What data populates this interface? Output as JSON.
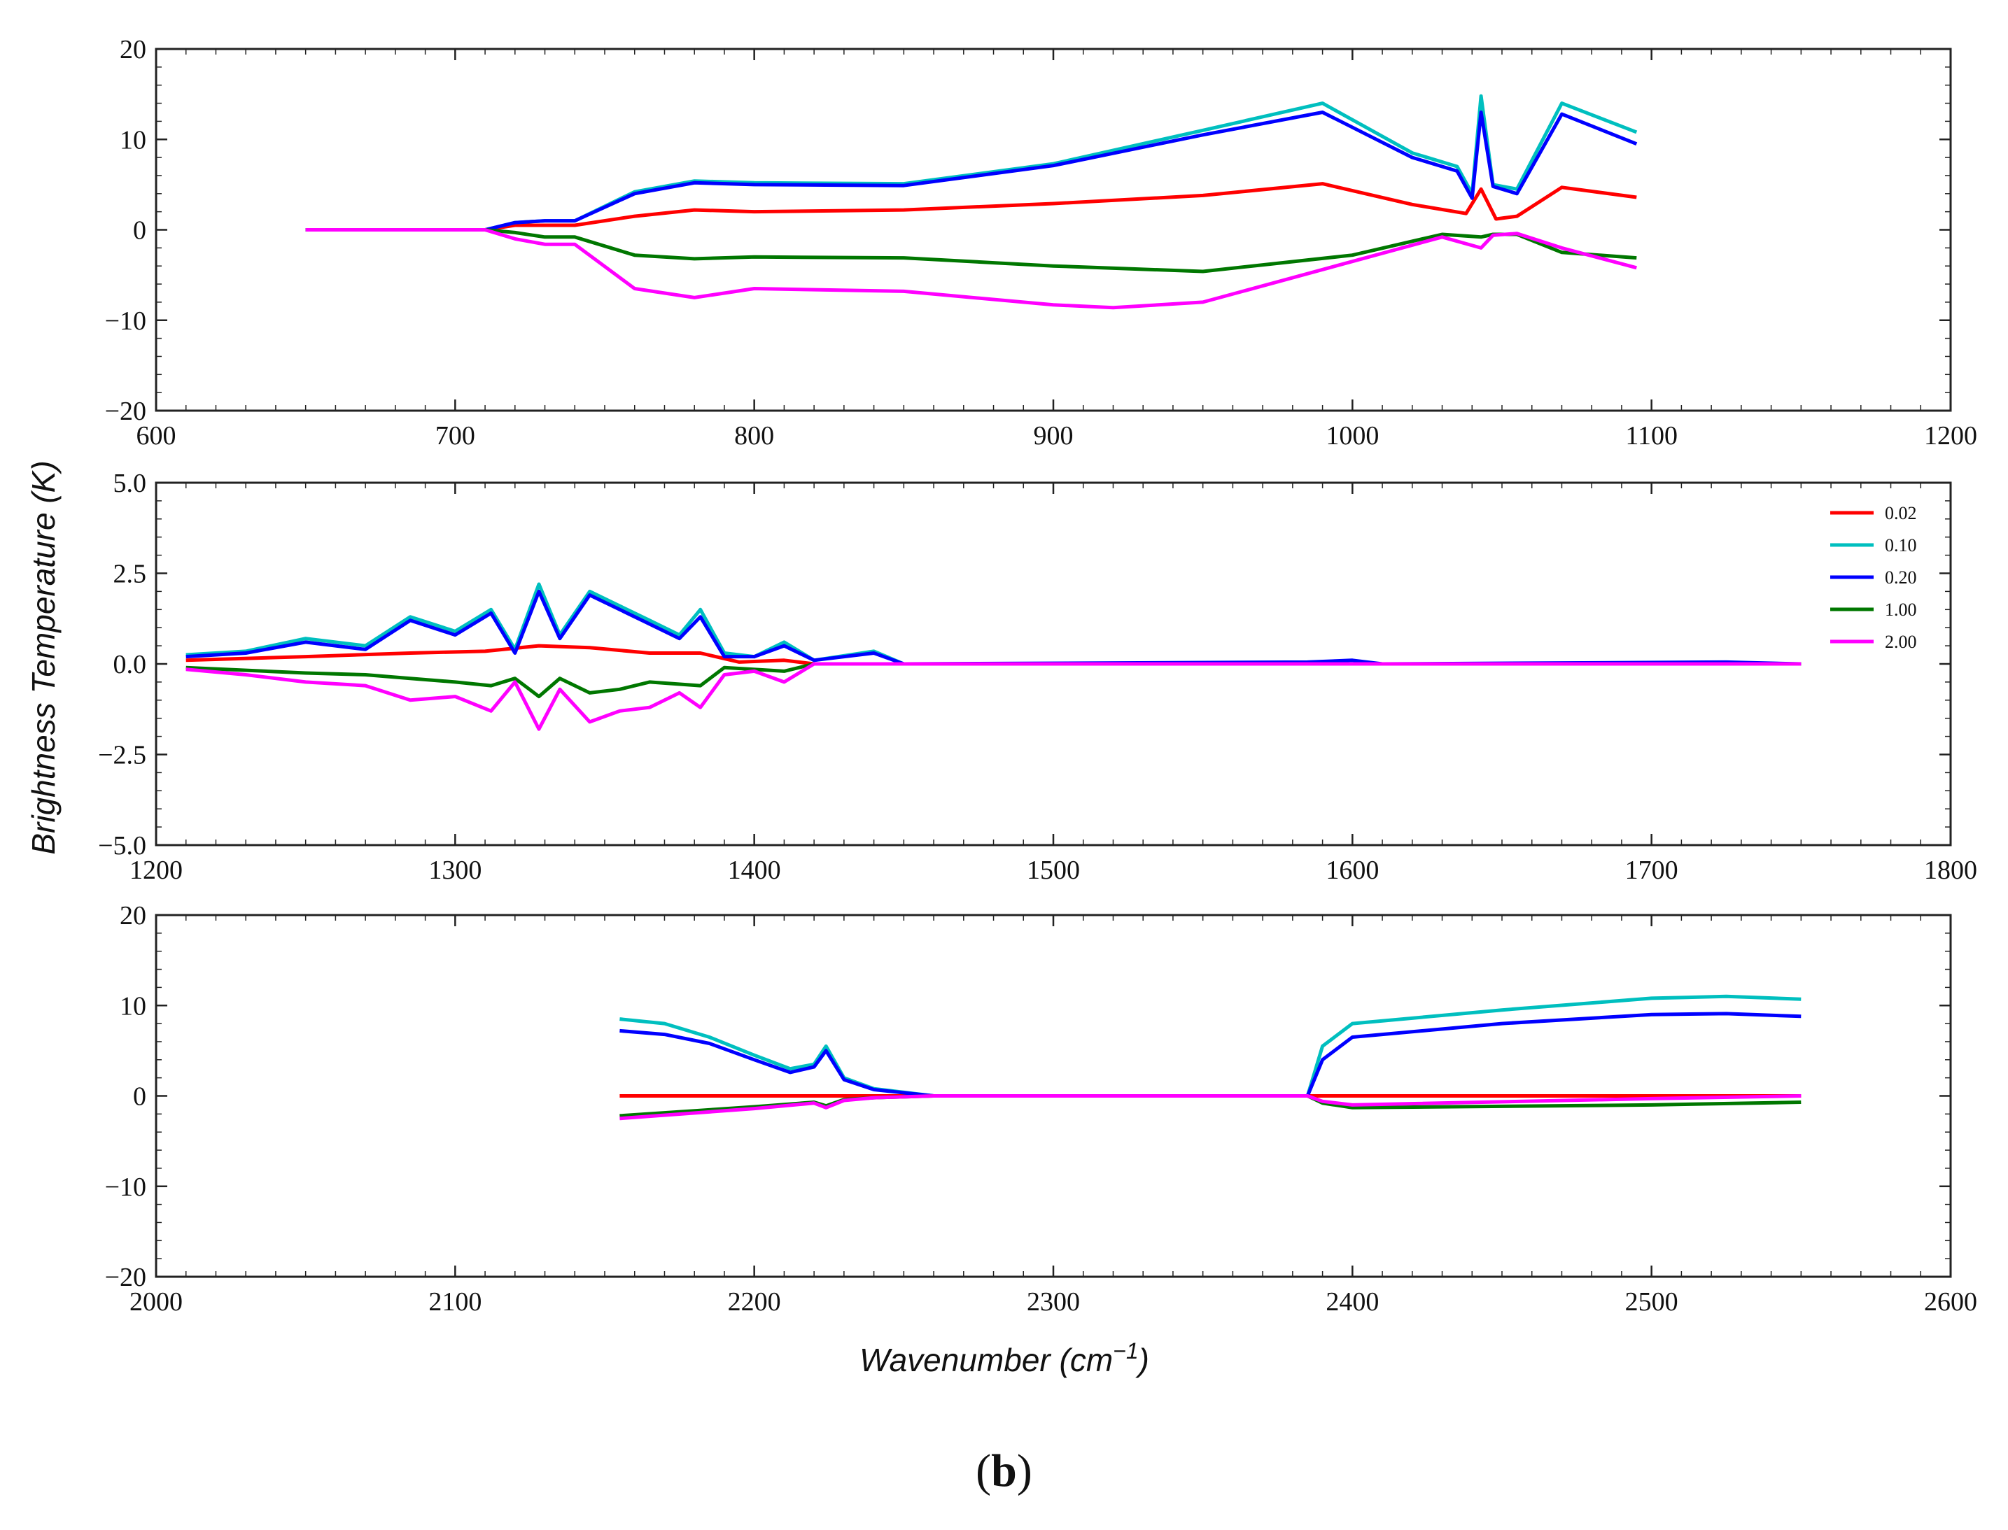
{
  "figure": {
    "ylabel": "Brightness Temperature (K)",
    "xlabel_text": "Wavenumber",
    "xlabel_unit_base": "cm",
    "xlabel_unit_exp": "−1",
    "caption_open": "(",
    "caption_letter": "b",
    "caption_close": ")"
  },
  "chart_data": [
    {
      "type": "line",
      "panel": "top",
      "xlim": [
        600,
        1200
      ],
      "ylim": [
        -20,
        20
      ],
      "xticks": [
        "600",
        "700",
        "800",
        "900",
        "1000",
        "1100",
        "1200"
      ],
      "yticks": [
        "20",
        "10",
        "0",
        "−10",
        "−20"
      ],
      "series": [
        {
          "name": "0.02",
          "color": "#ff0000",
          "x": [
            650,
            710,
            720,
            725,
            740,
            760,
            780,
            800,
            850,
            900,
            950,
            990,
            1020,
            1038,
            1043,
            1048,
            1055,
            1070,
            1095
          ],
          "y": [
            0,
            0,
            0.5,
            0.5,
            0.5,
            1.5,
            2.2,
            2.0,
            2.2,
            2.9,
            3.8,
            5.1,
            2.8,
            1.8,
            4.5,
            1.2,
            1.5,
            4.7,
            3.6
          ]
        },
        {
          "name": "0.10",
          "color": "#00bfbf",
          "x": [
            650,
            710,
            720,
            730,
            740,
            760,
            780,
            800,
            850,
            900,
            950,
            990,
            1020,
            1035,
            1040,
            1043,
            1047,
            1055,
            1070,
            1095
          ],
          "y": [
            0,
            0,
            0.8,
            1.0,
            1.0,
            4.2,
            5.4,
            5.2,
            5.1,
            7.3,
            11.0,
            14.0,
            8.5,
            7.0,
            4.0,
            14.8,
            5.0,
            4.5,
            14.0,
            10.8
          ]
        },
        {
          "name": "0.20",
          "color": "#0000ff",
          "x": [
            650,
            710,
            720,
            730,
            740,
            760,
            780,
            800,
            850,
            900,
            950,
            990,
            1020,
            1035,
            1040,
            1043,
            1047,
            1055,
            1070,
            1095
          ],
          "y": [
            0,
            0,
            0.8,
            1.0,
            1.0,
            4.0,
            5.2,
            5.0,
            4.9,
            7.1,
            10.5,
            13.0,
            8.0,
            6.5,
            3.5,
            13.0,
            4.8,
            4.0,
            12.8,
            9.5
          ]
        },
        {
          "name": "1.00",
          "color": "#007700",
          "x": [
            650,
            710,
            720,
            730,
            740,
            760,
            780,
            800,
            850,
            900,
            950,
            1000,
            1030,
            1043,
            1047,
            1055,
            1070,
            1095
          ],
          "y": [
            0,
            0,
            -0.3,
            -0.8,
            -0.8,
            -2.8,
            -3.2,
            -3.0,
            -3.1,
            -4.0,
            -4.6,
            -2.8,
            -0.5,
            -0.8,
            -0.5,
            -0.5,
            -2.5,
            -3.1
          ]
        },
        {
          "name": "2.00",
          "color": "#ff00ff",
          "x": [
            650,
            710,
            720,
            730,
            740,
            760,
            780,
            800,
            850,
            900,
            920,
            950,
            1000,
            1030,
            1043,
            1047,
            1055,
            1070,
            1095
          ],
          "y": [
            0,
            0,
            -1.0,
            -1.6,
            -1.6,
            -6.5,
            -7.5,
            -6.5,
            -6.8,
            -8.3,
            -8.6,
            -8.0,
            -3.5,
            -0.8,
            -2.0,
            -0.6,
            -0.4,
            -2.0,
            -4.2
          ]
        }
      ]
    },
    {
      "type": "line",
      "panel": "middle",
      "xlim": [
        1200,
        1800
      ],
      "ylim": [
        -5,
        5
      ],
      "xticks": [
        "1200",
        "1300",
        "1400",
        "1500",
        "1600",
        "1700",
        "1800"
      ],
      "yticks": [
        "5.0",
        "2.5",
        "0.0",
        "−2.5",
        "−5.0"
      ],
      "legend_position": "top-right",
      "series": [
        {
          "name": "0.02",
          "color": "#ff0000",
          "x": [
            1210,
            1250,
            1285,
            1310,
            1328,
            1345,
            1365,
            1382,
            1395,
            1410,
            1420,
            1750
          ],
          "y": [
            0.1,
            0.2,
            0.3,
            0.35,
            0.5,
            0.45,
            0.3,
            0.3,
            0.05,
            0.1,
            0.0,
            0.0
          ]
        },
        {
          "name": "0.10",
          "color": "#00bfbf",
          "x": [
            1210,
            1230,
            1250,
            1270,
            1285,
            1300,
            1312,
            1320,
            1328,
            1335,
            1345,
            1355,
            1365,
            1375,
            1382,
            1390,
            1400,
            1410,
            1420,
            1440,
            1450,
            1750
          ],
          "y": [
            0.25,
            0.35,
            0.7,
            0.5,
            1.3,
            0.9,
            1.5,
            0.4,
            2.2,
            0.8,
            2.0,
            1.6,
            1.2,
            0.8,
            1.5,
            0.3,
            0.2,
            0.6,
            0.1,
            0.35,
            0.0,
            0.0
          ]
        },
        {
          "name": "0.20",
          "color": "#0000ff",
          "x": [
            1210,
            1230,
            1250,
            1270,
            1285,
            1300,
            1312,
            1320,
            1328,
            1335,
            1345,
            1355,
            1365,
            1375,
            1382,
            1390,
            1400,
            1410,
            1420,
            1440,
            1450,
            1585,
            1600,
            1610,
            1725,
            1750
          ],
          "y": [
            0.2,
            0.3,
            0.6,
            0.4,
            1.2,
            0.8,
            1.4,
            0.3,
            2.0,
            0.7,
            1.9,
            1.5,
            1.1,
            0.7,
            1.3,
            0.2,
            0.2,
            0.5,
            0.1,
            0.3,
            0.0,
            0.05,
            0.1,
            0.0,
            0.05,
            0.0
          ]
        },
        {
          "name": "1.00",
          "color": "#007700",
          "x": [
            1210,
            1250,
            1270,
            1285,
            1300,
            1312,
            1320,
            1328,
            1335,
            1345,
            1355,
            1365,
            1382,
            1390,
            1410,
            1420,
            1750
          ],
          "y": [
            -0.1,
            -0.25,
            -0.3,
            -0.4,
            -0.5,
            -0.6,
            -0.4,
            -0.9,
            -0.4,
            -0.8,
            -0.7,
            -0.5,
            -0.6,
            -0.1,
            -0.2,
            0.0,
            0.0
          ]
        },
        {
          "name": "2.00",
          "color": "#ff00ff",
          "x": [
            1210,
            1230,
            1250,
            1270,
            1285,
            1300,
            1312,
            1320,
            1328,
            1335,
            1345,
            1355,
            1365,
            1375,
            1382,
            1390,
            1400,
            1410,
            1420,
            1750
          ],
          "y": [
            -0.15,
            -0.3,
            -0.5,
            -0.6,
            -1.0,
            -0.9,
            -1.3,
            -0.5,
            -1.8,
            -0.7,
            -1.6,
            -1.3,
            -1.2,
            -0.8,
            -1.2,
            -0.3,
            -0.2,
            -0.5,
            0.0,
            0.0
          ]
        }
      ]
    },
    {
      "type": "line",
      "panel": "bottom",
      "xlim": [
        2000,
        2600
      ],
      "ylim": [
        -20,
        20
      ],
      "xticks": [
        "2000",
        "2100",
        "2200",
        "2300",
        "2400",
        "2500",
        "2600"
      ],
      "yticks": [
        "20",
        "10",
        "0",
        "−10",
        "−20"
      ],
      "series": [
        {
          "name": "0.02",
          "color": "#ff0000",
          "x": [
            2155,
            2550
          ],
          "y": [
            0.0,
            0.0
          ]
        },
        {
          "name": "0.10",
          "color": "#00bfbf",
          "x": [
            2155,
            2170,
            2185,
            2200,
            2212,
            2220,
            2224,
            2230,
            2240,
            2260,
            2385,
            2390,
            2400,
            2450,
            2500,
            2525,
            2550
          ],
          "y": [
            8.5,
            8.0,
            6.5,
            4.5,
            3.0,
            3.5,
            5.5,
            2.0,
            0.8,
            0.0,
            0.0,
            5.5,
            8.0,
            9.5,
            10.8,
            11.0,
            10.7
          ]
        },
        {
          "name": "0.20",
          "color": "#0000ff",
          "x": [
            2155,
            2170,
            2185,
            2200,
            2212,
            2220,
            2224,
            2230,
            2240,
            2260,
            2385,
            2390,
            2400,
            2450,
            2500,
            2525,
            2550
          ],
          "y": [
            7.2,
            6.8,
            5.8,
            4.0,
            2.6,
            3.2,
            5.0,
            1.8,
            0.7,
            0.0,
            0.0,
            4.0,
            6.5,
            8.0,
            9.0,
            9.1,
            8.8
          ]
        },
        {
          "name": "1.00",
          "color": "#007700",
          "x": [
            2155,
            2200,
            2220,
            2224,
            2230,
            2240,
            2260,
            2385,
            2390,
            2400,
            2500,
            2550
          ],
          "y": [
            -2.2,
            -1.2,
            -0.7,
            -1.1,
            -0.4,
            -0.2,
            0.0,
            0.0,
            -0.8,
            -1.3,
            -1.0,
            -0.7
          ]
        },
        {
          "name": "2.00",
          "color": "#ff00ff",
          "x": [
            2155,
            2200,
            2220,
            2224,
            2230,
            2240,
            2260,
            2385,
            2390,
            2400,
            2500,
            2550
          ],
          "y": [
            -2.5,
            -1.4,
            -0.8,
            -1.3,
            -0.5,
            -0.2,
            0.0,
            0.0,
            -0.6,
            -1.0,
            -0.3,
            0.0
          ]
        }
      ]
    }
  ]
}
